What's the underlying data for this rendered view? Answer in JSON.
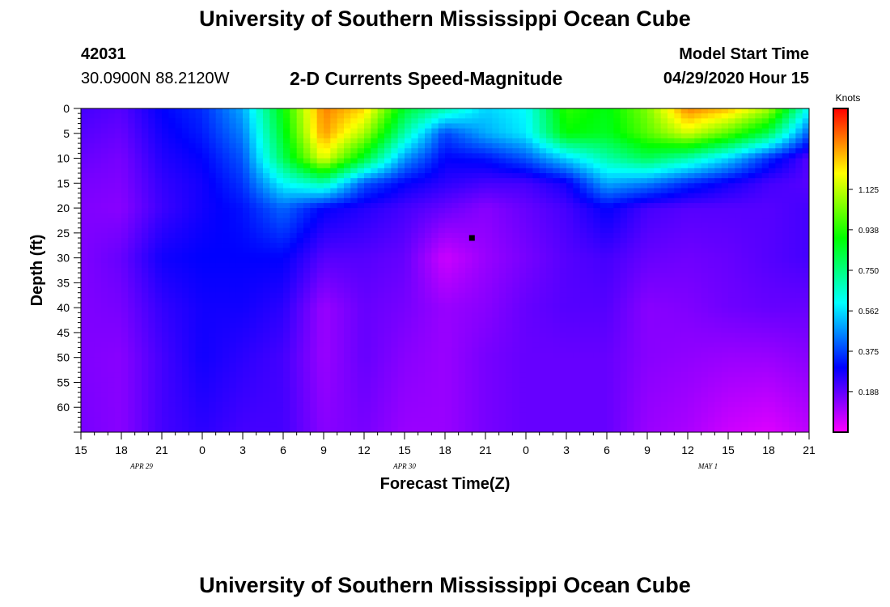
{
  "header": {
    "title": "University of Southern Mississippi Ocean Cube",
    "station_id": "42031",
    "station_location": "30.0900N 88.2120W",
    "subtitle": "2-D Currents Speed-Magnitude",
    "model_start_label": "Model Start Time",
    "model_start_value": "04/29/2020 Hour 15"
  },
  "footer": {
    "title": "University of Southern Mississippi Ocean Cube"
  },
  "colors": {
    "low": "#ff00ff",
    "mid_low": "#0000ff",
    "mid": "#00ffff",
    "mid_high": "#00ff00",
    "high_mid": "#ffff00",
    "high": "#ff0000",
    "marker": "#000000"
  },
  "chart_data": {
    "type": "heatmap",
    "title": "2-D Currents Speed-Magnitude",
    "xlabel": "Forecast Time(Z)",
    "ylabel": "Depth (ft)",
    "colorbar_label": "Knots",
    "x_ticks": [
      "15",
      "18",
      "21",
      "0",
      "3",
      "6",
      "9",
      "12",
      "15",
      "18",
      "21",
      "0",
      "3",
      "6",
      "9",
      "12",
      "15",
      "18",
      "21"
    ],
    "date_labels": [
      {
        "label": "APR 29",
        "tick_index": 1.5
      },
      {
        "label": "APR 30",
        "tick_index": 8
      },
      {
        "label": "MAY 1",
        "tick_index": 15.5
      }
    ],
    "y_ticks": [
      0,
      5,
      10,
      15,
      20,
      25,
      30,
      35,
      40,
      45,
      50,
      55,
      60
    ],
    "ylim": [
      0,
      65
    ],
    "x_hours": [
      0,
      54
    ],
    "colorbar_ticks": [
      "1.125",
      "0.938",
      "0.750",
      "0.562",
      "0.375",
      "0.188"
    ],
    "colorbar_range": [
      0,
      1.5
    ],
    "marker": {
      "hour": 29,
      "depth": 26
    },
    "field": {
      "hours": [
        0,
        3,
        6,
        9,
        12,
        15,
        18,
        21,
        24,
        27,
        30,
        33,
        36,
        39,
        42,
        45,
        48,
        51,
        54
      ],
      "depths": [
        0,
        5,
        10,
        15,
        20,
        30,
        40,
        50,
        65
      ],
      "speed": [
        [
          0.22,
          0.2,
          0.3,
          0.35,
          0.5,
          0.9,
          1.35,
          1.25,
          0.85,
          0.7,
          0.55,
          0.6,
          0.95,
          0.88,
          1.05,
          1.35,
          1.28,
          1.1,
          0.6
        ],
        [
          0.2,
          0.18,
          0.28,
          0.33,
          0.45,
          0.86,
          1.32,
          1.1,
          0.7,
          0.38,
          0.5,
          0.58,
          0.9,
          0.86,
          1.0,
          1.15,
          1.0,
          0.8,
          0.4
        ],
        [
          0.18,
          0.16,
          0.26,
          0.3,
          0.4,
          0.8,
          1.18,
          0.85,
          0.48,
          0.3,
          0.32,
          0.4,
          0.55,
          0.7,
          0.8,
          0.7,
          0.55,
          0.35,
          0.2
        ],
        [
          0.16,
          0.15,
          0.24,
          0.28,
          0.36,
          0.6,
          0.7,
          0.4,
          0.3,
          0.25,
          0.22,
          0.22,
          0.28,
          0.5,
          0.45,
          0.35,
          0.28,
          0.22,
          0.2
        ],
        [
          0.15,
          0.14,
          0.23,
          0.28,
          0.32,
          0.42,
          0.3,
          0.26,
          0.22,
          0.18,
          0.14,
          0.18,
          0.22,
          0.3,
          0.22,
          0.2,
          0.2,
          0.2,
          0.22
        ],
        [
          0.15,
          0.18,
          0.28,
          0.3,
          0.3,
          0.3,
          0.2,
          0.2,
          0.18,
          0.06,
          0.12,
          0.16,
          0.2,
          0.22,
          0.18,
          0.17,
          0.18,
          0.2,
          0.22
        ],
        [
          0.15,
          0.16,
          0.24,
          0.28,
          0.28,
          0.25,
          0.12,
          0.18,
          0.16,
          0.12,
          0.14,
          0.18,
          0.2,
          0.2,
          0.14,
          0.15,
          0.17,
          0.18,
          0.18
        ],
        [
          0.15,
          0.14,
          0.22,
          0.28,
          0.25,
          0.22,
          0.12,
          0.18,
          0.14,
          0.12,
          0.16,
          0.18,
          0.18,
          0.18,
          0.14,
          0.13,
          0.12,
          0.12,
          0.14
        ],
        [
          0.16,
          0.14,
          0.22,
          0.25,
          0.22,
          0.22,
          0.14,
          0.16,
          0.12,
          0.12,
          0.16,
          0.18,
          0.18,
          0.18,
          0.12,
          0.1,
          0.06,
          0.04,
          0.08
        ]
      ]
    }
  }
}
